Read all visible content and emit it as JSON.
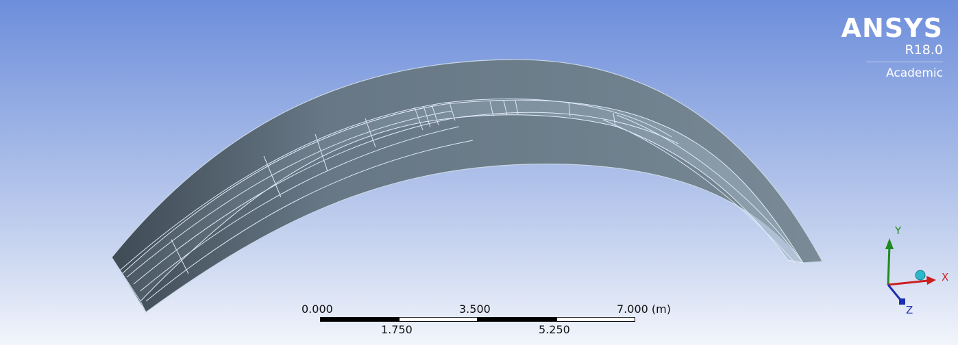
{
  "branding": {
    "product": "ANSYS",
    "release": "R18.0",
    "license": "Academic"
  },
  "scale_bar": {
    "top_labels": [
      "0.000",
      "3.500",
      "7.000 (m)"
    ],
    "bottom_labels": [
      "1.750",
      "5.250"
    ]
  },
  "triad": {
    "x_label": "X",
    "y_label": "Y",
    "z_label": "Z",
    "colors": {
      "x": "#cc1f1f",
      "y": "#1f8a1f",
      "z": "#1d2fb0",
      "iso": "#2bb7c9"
    }
  },
  "model": {
    "surface_color": "#6c7d8a",
    "edge_color": "#dbe8f4"
  }
}
